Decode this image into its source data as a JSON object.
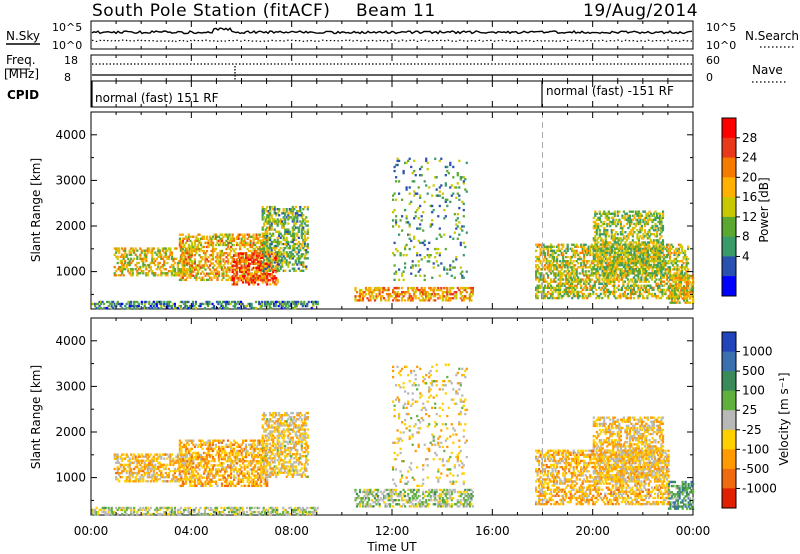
{
  "header": {
    "station_title": "South Pole Station (fitACF)",
    "beam": "Beam 11",
    "date": "19/Aug/2014"
  },
  "param_panel": {
    "nsky_label": "N.Sky",
    "nsearch_label": "N.Search",
    "nave_label": "Nave",
    "freq_label": "Freq.",
    "freq_unit": "[MHz]",
    "cpid_label": "CPID",
    "noise_tick_top": "10^5",
    "noise_tick_bottom": "10^0",
    "freq_tick_top": "18",
    "freq_tick_bottom": "8",
    "nave_tick_top": "60",
    "nave_tick_bottom": "0",
    "cpid_1": "normal (fast) 151 RF",
    "cpid_2": "normal (fast) -151 RF"
  },
  "power_colorbar": {
    "label": "Power [dB]",
    "ticks": [
      "28",
      "24",
      "20",
      "16",
      "12",
      "8",
      "4"
    ],
    "colors": [
      "#ff0000",
      "#e83a1a",
      "#f57a00",
      "#ffb000",
      "#c8c800",
      "#5aa830",
      "#3a9a6a",
      "#2a50b0",
      "#0000ff"
    ]
  },
  "velocity_colorbar": {
    "label": "Velocity [m s⁻¹]",
    "ticks": [
      "1000",
      "500",
      "100",
      "25",
      "-25",
      "-100",
      "-500",
      "-1000"
    ],
    "colors": [
      "#2244bb",
      "#3a70b0",
      "#3a8a5a",
      "#60b040",
      "#b8b8b8",
      "#ffd000",
      "#ff9a00",
      "#f06a10",
      "#e02000"
    ]
  },
  "chart_data": {
    "type": "heatmap",
    "xlabel": "Time UT",
    "ylabel": "Slant Range [km]",
    "x_tick_labels": [
      "00:00",
      "04:00",
      "08:00",
      "12:00",
      "16:00",
      "20:00",
      "00:00"
    ],
    "x_range_hours": [
      0,
      24
    ],
    "y_range_km": [
      180,
      4500
    ],
    "y_tick_labels": [
      "1000",
      "2000",
      "3000",
      "4000"
    ],
    "y_ticks": [
      1000,
      2000,
      3000,
      4000
    ],
    "cpid_change_hour": 18,
    "panels": [
      {
        "name": "Power",
        "unit": "dB",
        "scale": [
          0,
          32
        ],
        "regions": [
          {
            "t0": 0.9,
            "t1": 4.0,
            "r0": 900,
            "r1": 1500,
            "value": 18
          },
          {
            "t0": 3.5,
            "t1": 7.0,
            "r0": 800,
            "r1": 1800,
            "value": 20
          },
          {
            "t0": 5.6,
            "t1": 7.4,
            "r0": 700,
            "r1": 1400,
            "value": 27
          },
          {
            "t0": 6.8,
            "t1": 8.6,
            "r0": 1000,
            "r1": 2400,
            "value": 12
          },
          {
            "t0": 0.0,
            "t1": 9.0,
            "r0": 180,
            "r1": 350,
            "value": 8
          },
          {
            "t0": 10.5,
            "t1": 15.2,
            "r0": 350,
            "r1": 650,
            "value": 22
          },
          {
            "t0": 12.0,
            "t1": 15.0,
            "r0": 800,
            "r1": 3500,
            "value": 10
          },
          {
            "t0": 17.7,
            "t1": 23.8,
            "r0": 400,
            "r1": 1600,
            "value": 16
          },
          {
            "t0": 20.0,
            "t1": 22.8,
            "r0": 900,
            "r1": 2300,
            "value": 14
          },
          {
            "t0": 23.0,
            "t1": 24.0,
            "r0": 300,
            "r1": 900,
            "value": 18
          }
        ]
      },
      {
        "name": "Velocity",
        "unit": "m s-1",
        "scale": [
          -1000,
          1000
        ],
        "regions": [
          {
            "t0": 0.9,
            "t1": 4.0,
            "r0": 900,
            "r1": 1500,
            "value": -300
          },
          {
            "t0": 3.5,
            "t1": 7.0,
            "r0": 800,
            "r1": 1800,
            "value": -400
          },
          {
            "t0": 6.8,
            "t1": 8.6,
            "r0": 1000,
            "r1": 2400,
            "value": -200
          },
          {
            "t0": 0.0,
            "t1": 9.0,
            "r0": 180,
            "r1": 350,
            "value": 50
          },
          {
            "t0": 10.5,
            "t1": 15.2,
            "r0": 350,
            "r1": 750,
            "value": 80
          },
          {
            "t0": 12.0,
            "t1": 15.0,
            "r0": 800,
            "r1": 3500,
            "value": -150
          },
          {
            "t0": 17.7,
            "t1": 23.0,
            "r0": 400,
            "r1": 1600,
            "value": -350
          },
          {
            "t0": 20.0,
            "t1": 22.8,
            "r0": 900,
            "r1": 2300,
            "value": -250
          },
          {
            "t0": 23.0,
            "t1": 24.0,
            "r0": 300,
            "r1": 900,
            "value": 400
          }
        ]
      }
    ]
  }
}
